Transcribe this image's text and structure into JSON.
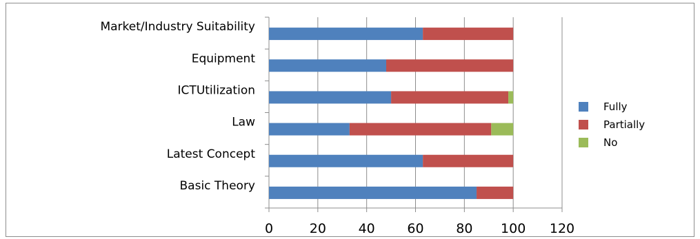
{
  "chart_data": {
    "type": "bar",
    "orientation": "horizontal",
    "stacked": true,
    "categories": [
      "Market/Industry Suitability",
      "Equipment",
      "ICTUtilization",
      "Law",
      "Latest Concept",
      "Basic Theory"
    ],
    "series": [
      {
        "name": "Fully",
        "color": "#4F81BD",
        "values": [
          63,
          48,
          50,
          33,
          63,
          85
        ]
      },
      {
        "name": "Partially",
        "color": "#C0504D",
        "values": [
          37,
          52,
          48,
          58,
          37,
          15
        ]
      },
      {
        "name": "No",
        "color": "#9BBB59",
        "values": [
          0,
          0,
          2,
          9,
          0,
          0
        ]
      }
    ],
    "x_ticks": [
      "0",
      "20",
      "40",
      "60",
      "80",
      "100",
      "120"
    ],
    "xlim": [
      0,
      120
    ],
    "grid": "vertical-major",
    "legend_position": "right"
  }
}
